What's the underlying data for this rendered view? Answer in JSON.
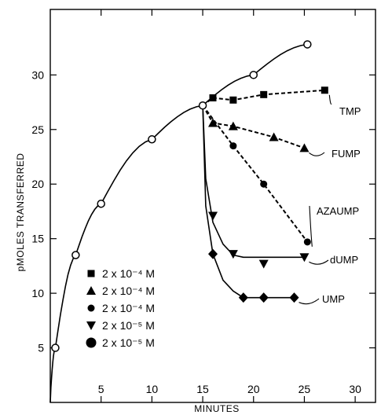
{
  "chart_data": {
    "type": "line",
    "xlabel": "MINUTES",
    "ylabel": "pMOLES TRANSFERRED",
    "xlim": [
      0,
      32
    ],
    "ylim": [
      0,
      36
    ],
    "xticks": [
      5,
      10,
      15,
      20,
      25,
      30
    ],
    "yticks": [
      5,
      10,
      15,
      20,
      25,
      30
    ],
    "series": [
      {
        "key": "control",
        "marker": "open-circle",
        "style": "solid",
        "x": [
          0.5,
          2.5,
          5,
          10,
          15,
          20,
          25.3
        ],
        "y": [
          5,
          13.5,
          18.2,
          24.1,
          27.2,
          30,
          32.8
        ]
      },
      {
        "key": "tmp",
        "name": "TMP",
        "marker": "square",
        "style": "dashed",
        "x": [
          15,
          16,
          18,
          21,
          27
        ],
        "y": [
          27.2,
          27.9,
          27.7,
          28.2,
          28.6
        ]
      },
      {
        "key": "fump",
        "name": "FUMP",
        "marker": "triangle-up",
        "style": "dashed",
        "x": [
          15,
          16,
          18,
          22,
          25
        ],
        "y": [
          27.2,
          25.6,
          25.3,
          24.3,
          23.3
        ]
      },
      {
        "key": "azaump",
        "name": "AZAUMP",
        "marker": "filled-circle-small",
        "style": "dashed",
        "x": [
          15,
          18,
          21,
          25.3
        ],
        "y": [
          27.2,
          23.5,
          20,
          14.7
        ]
      },
      {
        "key": "dump",
        "name": "dUMP",
        "marker": "triangle-down",
        "style": "solid",
        "x": [
          15,
          16,
          18,
          21,
          25
        ],
        "y": [
          27.2,
          17.1,
          13.6,
          12.7,
          13.3
        ],
        "line_x": [
          15,
          15.3,
          16,
          17,
          18,
          19,
          25
        ],
        "line_y": [
          27.2,
          20.5,
          16.5,
          14.5,
          13.5,
          13.3,
          13.3
        ]
      },
      {
        "key": "ump",
        "name": "UMP",
        "marker": "diamond",
        "style": "solid",
        "x": [
          15,
          16,
          19,
          21,
          24
        ],
        "y": [
          27.2,
          13.6,
          9.6,
          9.6,
          9.6
        ],
        "line_x": [
          15,
          15.3,
          16,
          17,
          18,
          19,
          24
        ],
        "line_y": [
          27.2,
          18,
          13.6,
          11.2,
          10.2,
          9.6,
          9.6
        ]
      }
    ],
    "annotations": [
      {
        "key": "tmp",
        "text": "TMP"
      },
      {
        "key": "fump",
        "text": "FUMP"
      },
      {
        "key": "azaump",
        "text": "AZAUMP"
      },
      {
        "key": "dump",
        "text": "dUMP"
      },
      {
        "key": "ump",
        "text": "UMP"
      }
    ],
    "legend": {
      "placement": "bottom-left",
      "entries": [
        {
          "marker": "square",
          "label": "2 x 10⁻⁴ M"
        },
        {
          "marker": "triangle-up",
          "label": "2 x 10⁻⁴ M"
        },
        {
          "marker": "filled-circle-small",
          "label": "2 x 10⁻⁴ M"
        },
        {
          "marker": "triangle-down",
          "label": "2 x 10⁻⁵ M"
        },
        {
          "marker": "filled-circle-large",
          "label": "2 x 10⁻⁵ M"
        }
      ]
    }
  }
}
